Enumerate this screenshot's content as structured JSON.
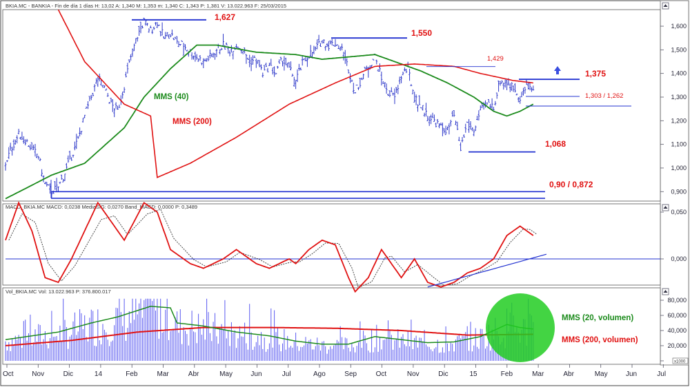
{
  "headers": {
    "price": "BKIA.MC - BANKIA - Fin de día 1 días  H: 13,02  A: 1,340  M: 1,353  m: 1,340  C: 1,343  P: 1,381  V: 13.022.963  F: 25/03/2015",
    "macd": "MACD_BKIA.MC  MACD: 0,0238  MediaSIG: 0,0270  Band_MACD: 0,0000  P: 0,3489",
    "vol": "Vol_BKIA.MC  Vol: 13.022.963  P: 376.800.017"
  },
  "chart_data": [
    {
      "type": "bar",
      "panel": "price",
      "y_ticks": [
        "1,600",
        "1,500",
        "1,400",
        "1,300",
        "1,200",
        "1,100",
        "1,000",
        "0,900"
      ],
      "ylim": [
        0.86,
        1.67
      ],
      "x_labels": [
        "Oct",
        "Nov",
        "Dic",
        "14",
        "Feb",
        "Mar",
        "Abr",
        "May",
        "Jun",
        "Jul",
        "Ago",
        "Sep",
        "Oct",
        "Nov",
        "Dic",
        "15",
        "Feb",
        "Mar",
        "Abr",
        "May",
        "Jun",
        "Jul"
      ],
      "close_anchors": [
        [
          0,
          1.02
        ],
        [
          1,
          1.09
        ],
        [
          2,
          1.14
        ],
        [
          3,
          1.12
        ],
        [
          4,
          1.08
        ],
        [
          5,
          1.05
        ],
        [
          6,
          0.93
        ],
        [
          7,
          0.9
        ],
        [
          8,
          0.92
        ],
        [
          9,
          0.98
        ],
        [
          10,
          1.05
        ],
        [
          11,
          1.12
        ],
        [
          12,
          1.22
        ],
        [
          13,
          1.3
        ],
        [
          14,
          1.38
        ],
        [
          15,
          1.34
        ],
        [
          16,
          1.27
        ],
        [
          17,
          1.24
        ],
        [
          18,
          1.35
        ],
        [
          19,
          1.47
        ],
        [
          20,
          1.56
        ],
        [
          21,
          1.62
        ],
        [
          22,
          1.58
        ],
        [
          23,
          1.62
        ],
        [
          24,
          1.55
        ],
        [
          25,
          1.57
        ],
        [
          26,
          1.53
        ],
        [
          27,
          1.52
        ],
        [
          28,
          1.49
        ],
        [
          29,
          1.47
        ],
        [
          30,
          1.45
        ],
        [
          31,
          1.47
        ],
        [
          32,
          1.5
        ],
        [
          33,
          1.52
        ],
        [
          34,
          1.5
        ],
        [
          35,
          1.52
        ],
        [
          36,
          1.5
        ],
        [
          37,
          1.45
        ],
        [
          38,
          1.46
        ],
        [
          39,
          1.4
        ],
        [
          40,
          1.43
        ],
        [
          41,
          1.4
        ],
        [
          42,
          1.46
        ],
        [
          43,
          1.42
        ],
        [
          44,
          1.37
        ],
        [
          45,
          1.44
        ],
        [
          46,
          1.48
        ],
        [
          47,
          1.5
        ],
        [
          48,
          1.54
        ],
        [
          49,
          1.52
        ],
        [
          50,
          1.53
        ],
        [
          51,
          1.5
        ],
        [
          52,
          1.42
        ],
        [
          53,
          1.32
        ],
        [
          54,
          1.38
        ],
        [
          55,
          1.43
        ],
        [
          56,
          1.47
        ],
        [
          57,
          1.38
        ],
        [
          58,
          1.32
        ],
        [
          59,
          1.3
        ],
        [
          60,
          1.39
        ],
        [
          61,
          1.42
        ],
        [
          62,
          1.3
        ],
        [
          63,
          1.26
        ],
        [
          64,
          1.22
        ],
        [
          65,
          1.2
        ],
        [
          66,
          1.17
        ],
        [
          67,
          1.16
        ],
        [
          68,
          1.22
        ],
        [
          69,
          1.08
        ],
        [
          70,
          1.19
        ],
        [
          71,
          1.16
        ],
        [
          72,
          1.24
        ],
        [
          73,
          1.27
        ],
        [
          74,
          1.26
        ],
        [
          75,
          1.37
        ],
        [
          76,
          1.36
        ],
        [
          77,
          1.34
        ],
        [
          78,
          1.3
        ],
        [
          79,
          1.34
        ],
        [
          80,
          1.34
        ]
      ],
      "mms40": [
        [
          0,
          0.87
        ],
        [
          7,
          0.97
        ],
        [
          12,
          1.02
        ],
        [
          18,
          1.17
        ],
        [
          21,
          1.3
        ],
        [
          25,
          1.42
        ],
        [
          29,
          1.52
        ],
        [
          32,
          1.52
        ],
        [
          38,
          1.49
        ],
        [
          44,
          1.48
        ],
        [
          48,
          1.46
        ],
        [
          52,
          1.47
        ],
        [
          56,
          1.48
        ],
        [
          59,
          1.45
        ],
        [
          63,
          1.41
        ],
        [
          67,
          1.36
        ],
        [
          71,
          1.3
        ],
        [
          74,
          1.24
        ],
        [
          76,
          1.22
        ],
        [
          78,
          1.24
        ],
        [
          80,
          1.27
        ]
      ],
      "mms200": [
        [
          8,
          1.67
        ],
        [
          12,
          1.45
        ],
        [
          18,
          1.27
        ],
        [
          22,
          1.22
        ],
        [
          23,
          0.96
        ],
        [
          28,
          1.02
        ],
        [
          35,
          1.13
        ],
        [
          43,
          1.27
        ],
        [
          50,
          1.36
        ],
        [
          56,
          1.43
        ],
        [
          62,
          1.44
        ],
        [
          68,
          1.43
        ],
        [
          72,
          1.4
        ],
        [
          77,
          1.37
        ],
        [
          80,
          1.36
        ]
      ],
      "levels": [
        {
          "label": "1,627",
          "value": 1.627
        },
        {
          "label": "1,550",
          "value": 1.55
        },
        {
          "label": "1,429",
          "value": 1.429
        },
        {
          "label": "1,375",
          "value": 1.375
        },
        {
          "label": "1,303 / 1,262",
          "value": 1.28
        },
        {
          "label": "1,068",
          "value": 1.068
        },
        {
          "label": "0,90 / 0,872",
          "value": 0.88
        }
      ],
      "series_labels": {
        "mms40": "MMS (40)",
        "mms200": "MMS (200)"
      }
    },
    {
      "type": "line",
      "panel": "macd",
      "y_ticks": [
        "0,050",
        "0,000"
      ],
      "macd": [
        [
          0,
          0.02
        ],
        [
          2,
          0.06
        ],
        [
          4,
          0.03
        ],
        [
          6,
          -0.02
        ],
        [
          8,
          -0.025
        ],
        [
          10,
          0.0
        ],
        [
          14,
          0.06
        ],
        [
          16,
          0.04
        ],
        [
          18,
          0.02
        ],
        [
          21,
          0.06
        ],
        [
          23,
          0.05
        ],
        [
          25,
          0.01
        ],
        [
          28,
          -0.005
        ],
        [
          30,
          -0.01
        ],
        [
          33,
          0.0
        ],
        [
          35,
          0.01
        ],
        [
          38,
          -0.005
        ],
        [
          40,
          -0.01
        ],
        [
          43,
          0.0
        ],
        [
          44,
          -0.005
        ],
        [
          46,
          0.01
        ],
        [
          48,
          0.02
        ],
        [
          50,
          0.015
        ],
        [
          52,
          -0.02
        ],
        [
          53,
          -0.035
        ],
        [
          55,
          -0.02
        ],
        [
          57,
          0.01
        ],
        [
          58,
          0.0
        ],
        [
          60,
          -0.02
        ],
        [
          62,
          0.0
        ],
        [
          64,
          -0.025
        ],
        [
          66,
          -0.03
        ],
        [
          68,
          -0.025
        ],
        [
          70,
          -0.015
        ],
        [
          72,
          -0.01
        ],
        [
          74,
          0.0
        ],
        [
          76,
          0.025
        ],
        [
          78,
          0.035
        ],
        [
          79,
          0.03
        ],
        [
          80,
          0.025
        ]
      ],
      "trendline": [
        [
          64,
          -0.03
        ],
        [
          82,
          0.005
        ]
      ]
    },
    {
      "type": "bar",
      "panel": "volume",
      "y_ticks": [
        "80,000",
        "60,000",
        "40,000",
        "20,000",
        "0"
      ],
      "unit_label": "x1000",
      "mms20": [
        [
          0,
          28
        ],
        [
          8,
          38
        ],
        [
          13,
          50
        ],
        [
          17,
          58
        ],
        [
          22,
          72
        ],
        [
          25,
          70
        ],
        [
          26,
          50
        ],
        [
          30,
          46
        ],
        [
          35,
          38
        ],
        [
          40,
          33
        ],
        [
          44,
          26
        ],
        [
          48,
          22
        ],
        [
          52,
          22
        ],
        [
          56,
          32
        ],
        [
          60,
          28
        ],
        [
          64,
          24
        ],
        [
          68,
          25
        ],
        [
          72,
          32
        ],
        [
          74,
          40
        ],
        [
          76,
          48
        ],
        [
          78,
          44
        ],
        [
          80,
          42
        ]
      ],
      "mms200": [
        [
          0,
          20
        ],
        [
          10,
          27
        ],
        [
          20,
          38
        ],
        [
          30,
          44
        ],
        [
          40,
          44
        ],
        [
          50,
          43
        ],
        [
          60,
          40
        ],
        [
          70,
          34
        ],
        [
          80,
          35
        ]
      ],
      "series_labels": {
        "mms20": "MMS (20, volumen)",
        "mms200": "MMS (200, volumen)"
      }
    }
  ],
  "colors": {
    "price": "#2a35c8",
    "mms40": "#1a8a1a",
    "mms200": "#e01010",
    "macd": "#e01010",
    "signal": "#444444",
    "level": "#2030d0",
    "volume": "#5a5af0",
    "highlight": "#22cc22"
  }
}
